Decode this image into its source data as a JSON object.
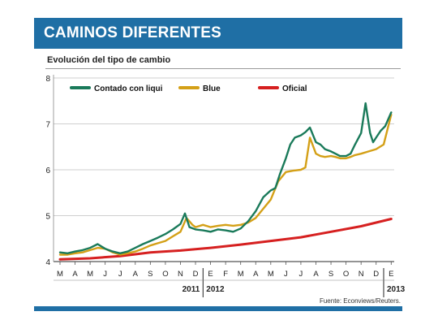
{
  "header": {
    "title": "CAMINOS DIFERENTES"
  },
  "subtitle": "Evolución del tipo de cambio",
  "source": "Fuente: Econviews/Reuters.",
  "colors": {
    "header_bg": "#1f6fa5",
    "contado": "#1a7a5a",
    "blue": "#d4a017",
    "oficial": "#d62020"
  },
  "chart_data": {
    "type": "line",
    "title": "Evolución del tipo de cambio",
    "xlabel": "",
    "ylabel": "",
    "ylim": [
      4,
      8
    ],
    "yticks": [
      4,
      5,
      6,
      7,
      8
    ],
    "grid": true,
    "legend_position": "top-left",
    "x_month_labels": [
      "M",
      "A",
      "M",
      "J",
      "J",
      "A",
      "S",
      "O",
      "N",
      "D",
      "E",
      "F",
      "M",
      "A",
      "M",
      "J",
      "J",
      "A",
      "S",
      "O",
      "N",
      "D",
      "E"
    ],
    "year_labels": [
      "2011",
      "2012",
      "2013"
    ],
    "x_months": [
      "2011-03",
      "2011-04",
      "2011-05",
      "2011-06",
      "2011-07",
      "2011-08",
      "2011-09",
      "2011-10",
      "2011-11",
      "2011-12",
      "2012-01",
      "2012-02",
      "2012-03",
      "2012-04",
      "2012-05",
      "2012-06",
      "2012-07",
      "2012-08",
      "2012-09",
      "2012-10",
      "2012-11",
      "2012-12",
      "2013-01"
    ],
    "series": [
      {
        "name": "Contado con liqui",
        "color": "#1a7a5a",
        "points": [
          [
            0,
            4.2
          ],
          [
            0.5,
            4.18
          ],
          [
            1,
            4.22
          ],
          [
            1.5,
            4.25
          ],
          [
            2,
            4.3
          ],
          [
            2.5,
            4.38
          ],
          [
            3,
            4.28
          ],
          [
            3.5,
            4.22
          ],
          [
            4,
            4.18
          ],
          [
            4.5,
            4.22
          ],
          [
            5,
            4.3
          ],
          [
            5.5,
            4.38
          ],
          [
            6,
            4.45
          ],
          [
            6.5,
            4.52
          ],
          [
            7,
            4.6
          ],
          [
            7.5,
            4.7
          ],
          [
            8,
            4.82
          ],
          [
            8.3,
            5.05
          ],
          [
            8.6,
            4.75
          ],
          [
            9,
            4.7
          ],
          [
            9.5,
            4.68
          ],
          [
            10,
            4.65
          ],
          [
            10.5,
            4.7
          ],
          [
            11,
            4.68
          ],
          [
            11.5,
            4.65
          ],
          [
            12,
            4.72
          ],
          [
            12.5,
            4.88
          ],
          [
            13,
            5.1
          ],
          [
            13.5,
            5.4
          ],
          [
            14,
            5.55
          ],
          [
            14.3,
            5.6
          ],
          [
            14.6,
            5.9
          ],
          [
            15,
            6.25
          ],
          [
            15.3,
            6.55
          ],
          [
            15.6,
            6.7
          ],
          [
            16,
            6.75
          ],
          [
            16.3,
            6.82
          ],
          [
            16.6,
            6.92
          ],
          [
            17,
            6.6
          ],
          [
            17.3,
            6.55
          ],
          [
            17.6,
            6.45
          ],
          [
            18,
            6.4
          ],
          [
            18.3,
            6.35
          ],
          [
            18.6,
            6.3
          ],
          [
            19,
            6.3
          ],
          [
            19.3,
            6.35
          ],
          [
            19.6,
            6.55
          ],
          [
            20,
            6.8
          ],
          [
            20.3,
            7.45
          ],
          [
            20.6,
            6.8
          ],
          [
            20.8,
            6.6
          ],
          [
            21,
            6.7
          ],
          [
            21.3,
            6.85
          ],
          [
            21.6,
            6.95
          ],
          [
            22,
            7.25
          ]
        ]
      },
      {
        "name": "Blue",
        "color": "#d4a017",
        "points": [
          [
            0,
            4.15
          ],
          [
            0.5,
            4.15
          ],
          [
            1,
            4.18
          ],
          [
            1.5,
            4.2
          ],
          [
            2,
            4.25
          ],
          [
            2.5,
            4.3
          ],
          [
            3,
            4.28
          ],
          [
            3.5,
            4.2
          ],
          [
            4,
            4.15
          ],
          [
            4.5,
            4.18
          ],
          [
            5,
            4.22
          ],
          [
            5.5,
            4.28
          ],
          [
            6,
            4.35
          ],
          [
            6.5,
            4.4
          ],
          [
            7,
            4.45
          ],
          [
            7.5,
            4.55
          ],
          [
            8,
            4.65
          ],
          [
            8.4,
            4.95
          ],
          [
            8.8,
            4.8
          ],
          [
            9,
            4.75
          ],
          [
            9.5,
            4.8
          ],
          [
            10,
            4.75
          ],
          [
            10.5,
            4.78
          ],
          [
            11,
            4.8
          ],
          [
            11.5,
            4.78
          ],
          [
            12,
            4.8
          ],
          [
            12.5,
            4.85
          ],
          [
            13,
            4.95
          ],
          [
            13.5,
            5.15
          ],
          [
            14,
            5.35
          ],
          [
            14.5,
            5.75
          ],
          [
            15,
            5.95
          ],
          [
            15.5,
            5.98
          ],
          [
            16,
            6.0
          ],
          [
            16.3,
            6.05
          ],
          [
            16.6,
            6.7
          ],
          [
            17,
            6.35
          ],
          [
            17.3,
            6.3
          ],
          [
            17.6,
            6.28
          ],
          [
            18,
            6.3
          ],
          [
            18.3,
            6.28
          ],
          [
            18.6,
            6.25
          ],
          [
            19,
            6.25
          ],
          [
            19.3,
            6.28
          ],
          [
            19.6,
            6.32
          ],
          [
            20,
            6.35
          ],
          [
            20.5,
            6.4
          ],
          [
            21,
            6.45
          ],
          [
            21.5,
            6.55
          ],
          [
            22,
            7.2
          ]
        ]
      },
      {
        "name": "Oficial",
        "color": "#d62020",
        "points": [
          [
            0,
            4.05
          ],
          [
            2,
            4.07
          ],
          [
            4,
            4.12
          ],
          [
            6,
            4.2
          ],
          [
            8,
            4.24
          ],
          [
            10,
            4.3
          ],
          [
            12,
            4.37
          ],
          [
            14,
            4.45
          ],
          [
            16,
            4.53
          ],
          [
            18,
            4.65
          ],
          [
            20,
            4.77
          ],
          [
            22,
            4.93
          ]
        ]
      }
    ]
  }
}
